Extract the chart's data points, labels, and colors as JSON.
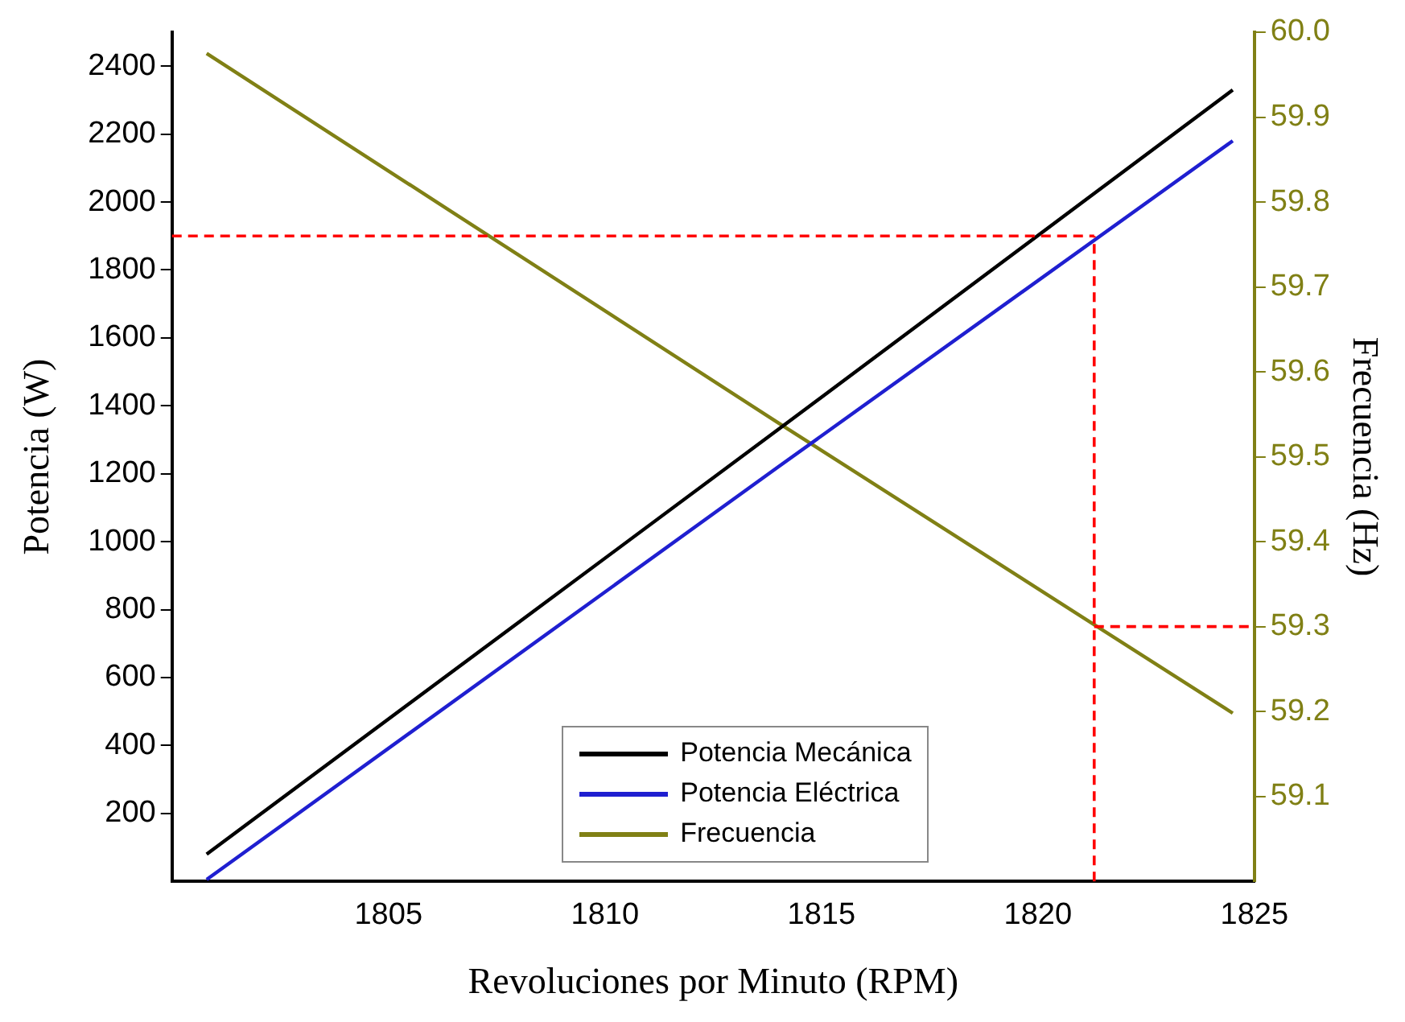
{
  "chart_data": {
    "type": "line",
    "xlabel": "Revoluciones por Minuto (RPM)",
    "ylabel": "Potencia (W)",
    "y2label": "Frecuencia (Hz)",
    "xlim": [
      1800,
      1825
    ],
    "xticks": [
      1805,
      1810,
      1815,
      1820,
      1825
    ],
    "ylim": [
      0,
      2500
    ],
    "yticks": [
      200,
      400,
      600,
      800,
      1000,
      1200,
      1400,
      1600,
      1800,
      2000,
      2200,
      2400
    ],
    "y2lim": [
      59.0,
      60.0
    ],
    "y2ticks": [
      {
        "value": 59.1,
        "label": "59.1"
      },
      {
        "value": 59.2,
        "label": "59.2"
      },
      {
        "value": 59.3,
        "label": "59.3"
      },
      {
        "value": 59.4,
        "label": "59.4"
      },
      {
        "value": 59.5,
        "label": "59.5"
      },
      {
        "value": 59.6,
        "label": "59.6"
      },
      {
        "value": 59.7,
        "label": "59.7"
      },
      {
        "value": 59.8,
        "label": "59.8"
      },
      {
        "value": 59.9,
        "label": "59.9"
      },
      {
        "value": 60.0,
        "label": "60.0"
      }
    ],
    "series": [
      {
        "name": "Potencia Mecánica",
        "color": "#000000",
        "x": [
          1800.8,
          1814,
          1824.5
        ],
        "values": [
          80,
          1330,
          2330
        ]
      },
      {
        "name": "Potencia Eléctrica",
        "color": "#1f1fd0",
        "x": [
          1800.8,
          1814,
          1824.5
        ],
        "values": [
          5,
          1220,
          2180
        ]
      },
      {
        "name": "Frecuencia",
        "color": "#808015",
        "axis": "y2",
        "x": [
          1800.8,
          1814,
          1824.5
        ],
        "values": [
          59.975,
          59.54,
          59.198
        ]
      }
    ],
    "ref_lines": [
      {
        "axis": "y",
        "value": 1900,
        "color": "#ff0000",
        "line_style": "dashed"
      },
      {
        "axis": "x",
        "value": 1821.3,
        "color": "#ff0000",
        "line_style": "dashed"
      },
      {
        "axis": "y2",
        "value": 59.3,
        "color": "#ff0000",
        "line_style": "dashed"
      }
    ],
    "legend": "bottom",
    "grid": false,
    "marker": "none",
    "line_style": "solid"
  }
}
